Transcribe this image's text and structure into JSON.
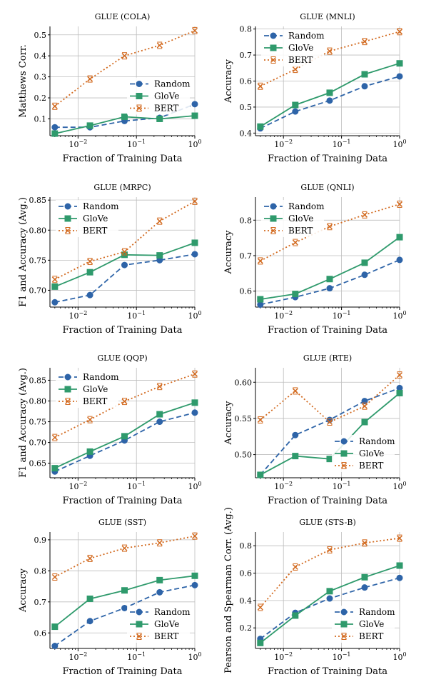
{
  "figure": {
    "series_styles": {
      "Random": {
        "color": "#2e64a8",
        "dash": "7,4",
        "marker": "circle"
      },
      "GloVe": {
        "color": "#2f9a6c",
        "dash": "",
        "marker": "square"
      },
      "BERT": {
        "color": "#d2691e",
        "dash": "2,3",
        "marker": "x"
      }
    },
    "grid_color": "#bdbdbd",
    "x_ticks": [
      {
        "value": 0.01,
        "base": "10",
        "exp": "−2"
      },
      {
        "value": 0.1,
        "base": "10",
        "exp": "−1"
      },
      {
        "value": 1,
        "base": "10",
        "exp": "0"
      }
    ]
  },
  "chart_data": [
    {
      "type": "line",
      "title": "GLUE (COLA)",
      "xlabel": "Fraction of Training Data",
      "ylabel": "Matthews Corr.",
      "x_scale": "log",
      "xlim": [
        0.0033,
        1
      ],
      "ylim": [
        0.02,
        0.54
      ],
      "yticks": [
        0.1,
        0.2,
        0.3,
        0.4,
        0.5
      ],
      "ytick_labels": [
        "0.1",
        "0.2",
        "0.3",
        "0.4",
        "0.5"
      ],
      "grid": true,
      "legend_position": "center-right",
      "x": [
        0.004,
        0.016,
        0.0625,
        0.25,
        1
      ],
      "series": [
        {
          "name": "Random",
          "values": [
            0.06,
            0.06,
            0.09,
            0.105,
            0.17
          ]
        },
        {
          "name": "GloVe",
          "values": [
            0.03,
            0.068,
            0.11,
            0.1,
            0.115
          ]
        },
        {
          "name": "BERT",
          "values": [
            0.16,
            0.29,
            0.4,
            0.45,
            0.52
          ]
        }
      ]
    },
    {
      "type": "line",
      "title": "GLUE (MNLI)",
      "xlabel": "Fraction of Training Data",
      "ylabel": "Accuracy",
      "x_scale": "log",
      "xlim": [
        0.0033,
        1
      ],
      "ylim": [
        0.39,
        0.81
      ],
      "yticks": [
        0.4,
        0.5,
        0.6,
        0.7,
        0.8
      ],
      "ytick_labels": [
        "0.4",
        "0.5",
        "0.6",
        "0.7",
        "0.8"
      ],
      "grid": true,
      "legend_position": "top-left",
      "x": [
        0.004,
        0.016,
        0.0625,
        0.25,
        1
      ],
      "series": [
        {
          "name": "Random",
          "values": [
            0.418,
            0.483,
            0.525,
            0.58,
            0.618
          ]
        },
        {
          "name": "GloVe",
          "values": [
            0.425,
            0.508,
            0.555,
            0.626,
            0.668
          ]
        },
        {
          "name": "BERT",
          "values": [
            0.58,
            0.645,
            0.715,
            0.752,
            0.79
          ]
        }
      ]
    },
    {
      "type": "line",
      "title": "GLUE (MRPC)",
      "xlabel": "Fraction of Training Data",
      "ylabel": "F1 and Accuracy (Avg.)",
      "x_scale": "log",
      "xlim": [
        0.0033,
        1
      ],
      "ylim": [
        0.672,
        0.855
      ],
      "yticks": [
        0.7,
        0.75,
        0.8,
        0.85
      ],
      "ytick_labels": [
        "0.70",
        "0.75",
        "0.80",
        "0.85"
      ],
      "grid": true,
      "legend_position": "top-left",
      "x": [
        0.004,
        0.016,
        0.0625,
        0.25,
        1
      ],
      "series": [
        {
          "name": "Random",
          "values": [
            0.68,
            0.692,
            0.742,
            0.75,
            0.76
          ]
        },
        {
          "name": "GloVe",
          "values": [
            0.706,
            0.73,
            0.759,
            0.758,
            0.779
          ]
        },
        {
          "name": "BERT",
          "values": [
            0.718,
            0.748,
            0.764,
            0.815,
            0.848
          ]
        }
      ]
    },
    {
      "type": "line",
      "title": "GLUE (QNLI)",
      "xlabel": "Fraction of Training Data",
      "ylabel": "Accuracy",
      "x_scale": "log",
      "xlim": [
        0.0033,
        1
      ],
      "ylim": [
        0.555,
        0.865
      ],
      "yticks": [
        0.6,
        0.7,
        0.8
      ],
      "ytick_labels": [
        "0.6",
        "0.7",
        "0.8"
      ],
      "grid": true,
      "legend_position": "top-left",
      "x": [
        0.004,
        0.016,
        0.0625,
        0.25,
        1
      ],
      "series": [
        {
          "name": "Random",
          "values": [
            0.562,
            0.583,
            0.608,
            0.646,
            0.688
          ]
        },
        {
          "name": "GloVe",
          "values": [
            0.577,
            0.592,
            0.634,
            0.68,
            0.752
          ]
        },
        {
          "name": "BERT",
          "values": [
            0.685,
            0.737,
            0.782,
            0.815,
            0.845
          ]
        }
      ]
    },
    {
      "type": "line",
      "title": "GLUE (QQP)",
      "xlabel": "Fraction of Training Data",
      "ylabel": "F1 and Accuracy (Avg.)",
      "x_scale": "log",
      "xlim": [
        0.0033,
        1
      ],
      "ylim": [
        0.615,
        0.88
      ],
      "yticks": [
        0.65,
        0.7,
        0.75,
        0.8,
        0.85
      ],
      "ytick_labels": [
        "0.65",
        "0.70",
        "0.75",
        "0.80",
        "0.85"
      ],
      "grid": true,
      "legend_position": "top-left",
      "x": [
        0.004,
        0.016,
        0.0625,
        0.25,
        1
      ],
      "series": [
        {
          "name": "Random",
          "values": [
            0.63,
            0.668,
            0.705,
            0.75,
            0.772
          ]
        },
        {
          "name": "GloVe",
          "values": [
            0.638,
            0.678,
            0.715,
            0.768,
            0.796
          ]
        },
        {
          "name": "BERT",
          "values": [
            0.712,
            0.755,
            0.799,
            0.835,
            0.865
          ]
        }
      ]
    },
    {
      "type": "line",
      "title": "GLUE (RTE)",
      "xlabel": "Fraction of Training Data",
      "ylabel": "Accuracy",
      "x_scale": "log",
      "xlim": [
        0.0033,
        1
      ],
      "ylim": [
        0.468,
        0.62
      ],
      "yticks": [
        0.5,
        0.55,
        0.6
      ],
      "ytick_labels": [
        "0.50",
        "0.55",
        "0.60"
      ],
      "grid": true,
      "legend_position": "bottom-right",
      "x": [
        0.004,
        0.016,
        0.0625,
        0.25,
        1
      ],
      "series": [
        {
          "name": "Random",
          "values": [
            0.472,
            0.527,
            0.548,
            0.574,
            0.592
          ]
        },
        {
          "name": "GloVe",
          "values": [
            0.472,
            0.498,
            0.494,
            0.545,
            0.585
          ]
        },
        {
          "name": "BERT",
          "values": [
            0.548,
            0.588,
            0.545,
            0.567,
            0.61
          ]
        }
      ]
    },
    {
      "type": "line",
      "title": "GLUE (SST)",
      "xlabel": "Fraction of Training Data",
      "ylabel": "Accuracy",
      "x_scale": "log",
      "xlim": [
        0.0033,
        1
      ],
      "ylim": [
        0.55,
        0.925
      ],
      "yticks": [
        0.6,
        0.7,
        0.8,
        0.9
      ],
      "ytick_labels": [
        "0.6",
        "0.7",
        "0.8",
        "0.9"
      ],
      "grid": true,
      "legend_position": "bottom-right",
      "x": [
        0.004,
        0.016,
        0.0625,
        0.25,
        1
      ],
      "series": [
        {
          "name": "Random",
          "values": [
            0.558,
            0.638,
            0.68,
            0.731,
            0.754
          ]
        },
        {
          "name": "GloVe",
          "values": [
            0.62,
            0.71,
            0.737,
            0.77,
            0.784
          ]
        },
        {
          "name": "BERT",
          "values": [
            0.78,
            0.84,
            0.873,
            0.89,
            0.912
          ]
        }
      ]
    },
    {
      "type": "line",
      "title": "GLUE (STS-B)",
      "xlabel": "Fraction of Training Data",
      "ylabel": "Pearson and Spearman Corr. (Avg.)",
      "x_scale": "log",
      "xlim": [
        0.0033,
        1
      ],
      "ylim": [
        0.05,
        0.9
      ],
      "yticks": [
        0.2,
        0.4,
        0.6,
        0.8
      ],
      "ytick_labels": [
        "0.2",
        "0.4",
        "0.6",
        "0.8"
      ],
      "grid": true,
      "legend_position": "bottom-right",
      "x": [
        0.004,
        0.016,
        0.0625,
        0.25,
        1
      ],
      "series": [
        {
          "name": "Random",
          "values": [
            0.12,
            0.31,
            0.415,
            0.495,
            0.565
          ]
        },
        {
          "name": "GloVe",
          "values": [
            0.09,
            0.29,
            0.468,
            0.57,
            0.655
          ]
        },
        {
          "name": "BERT",
          "values": [
            0.35,
            0.645,
            0.77,
            0.82,
            0.855
          ]
        }
      ]
    }
  ]
}
